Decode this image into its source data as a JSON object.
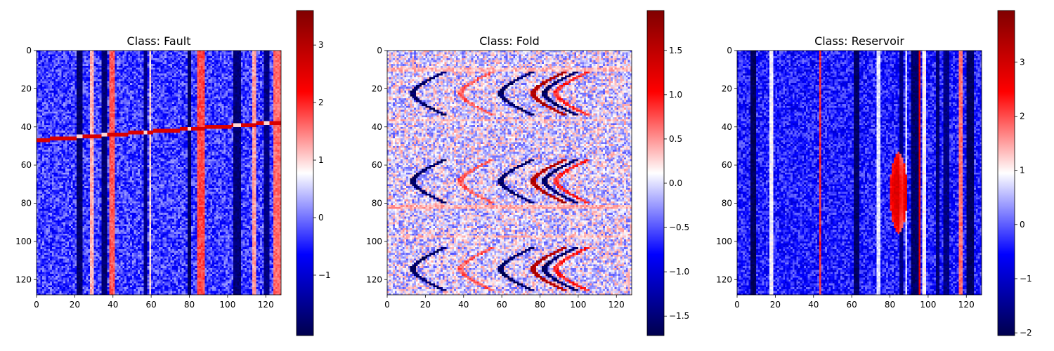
{
  "chart_data": [
    {
      "type": "heatmap",
      "title": "Class: Fault",
      "xlim": [
        0,
        128
      ],
      "ylim": [
        128,
        0
      ],
      "x_ticks": [
        0,
        20,
        40,
        60,
        80,
        100,
        120
      ],
      "y_ticks": [
        0,
        20,
        40,
        60,
        80,
        100,
        120
      ],
      "colormap": "seismic",
      "colorbar_range": [
        -2.05,
        3.6
      ],
      "colorbar_ticks": [
        -1,
        0,
        1,
        2,
        3
      ],
      "background_value": -0.3,
      "noise_amplitude": 0.55,
      "vertical_bands": [
        {
          "x": [
            21,
            24
          ],
          "value": -1.8
        },
        {
          "x": [
            28,
            30
          ],
          "value": 1.2
        },
        {
          "x": [
            34,
            37
          ],
          "value": -1.7
        },
        {
          "x": [
            38,
            41
          ],
          "value": 1.7
        },
        {
          "x": [
            56,
            58
          ],
          "value": -1.6
        },
        {
          "x": [
            59,
            60
          ],
          "value": 1.0
        },
        {
          "x": [
            79,
            81
          ],
          "value": -1.9
        },
        {
          "x": [
            84,
            88
          ],
          "value": 1.8
        },
        {
          "x": [
            103,
            107
          ],
          "value": -1.7
        },
        {
          "x": [
            113,
            115
          ],
          "value": 1.3
        },
        {
          "x": [
            119,
            122
          ],
          "value": -1.6
        },
        {
          "x": [
            124,
            128
          ],
          "value": 1.6
        }
      ],
      "fault_line": {
        "x": [
          0,
          128
        ],
        "y": [
          47,
          37.5
        ],
        "thickness": 2,
        "value": 2.6
      }
    },
    {
      "type": "heatmap",
      "title": "Class: Fold",
      "xlim": [
        0,
        128
      ],
      "ylim": [
        128,
        0
      ],
      "x_ticks": [
        0,
        20,
        40,
        60,
        80,
        100,
        120
      ],
      "y_ticks": [
        0,
        20,
        40,
        60,
        80,
        100,
        120
      ],
      "colormap": "seismic",
      "colorbar_range": [
        -1.72,
        1.95
      ],
      "colorbar_ticks": [
        -1.5,
        -1.0,
        -0.5,
        0.0,
        0.5,
        1.0,
        1.5
      ],
      "background_value": 0.0,
      "noise_amplitude": 0.5,
      "horizontal_bands": [
        {
          "y": [
            9,
            11
          ],
          "value": 0.35
        },
        {
          "y": [
            36,
            37
          ],
          "value": 0.35
        },
        {
          "y": [
            81,
            83
          ],
          "value": 0.4
        },
        {
          "y": [
            97,
            98
          ],
          "value": 0.35
        }
      ],
      "chevron_rows": [
        22,
        68,
        114
      ],
      "chevrons": [
        {
          "x0": 12,
          "value": -1.6
        },
        {
          "x0": 37,
          "value": 0.7
        },
        {
          "x0": 58,
          "value": -1.6
        },
        {
          "x0": 75,
          "value": 1.6
        },
        {
          "x0": 81,
          "value": -1.6
        },
        {
          "x0": 87,
          "value": 0.9
        }
      ],
      "chevron_half_height": 11,
      "chevron_depth": 16
    },
    {
      "type": "heatmap",
      "title": "Class: Reservoir",
      "xlim": [
        0,
        128
      ],
      "ylim": [
        128,
        0
      ],
      "x_ticks": [
        0,
        20,
        40,
        60,
        80,
        100,
        120
      ],
      "y_ticks": [
        0,
        20,
        40,
        60,
        80,
        100,
        120
      ],
      "colormap": "seismic",
      "colorbar_range": [
        -2.05,
        3.95
      ],
      "colorbar_ticks": [
        -2,
        -1,
        0,
        1,
        2,
        3
      ],
      "background_value": -0.4,
      "noise_amplitude": 0.55,
      "vertical_bands": [
        {
          "x": [
            7,
            10
          ],
          "value": -1.9
        },
        {
          "x": [
            17,
            19
          ],
          "value": 0.9
        },
        {
          "x": [
            43,
            44
          ],
          "value": 2.2
        },
        {
          "x": [
            61,
            64
          ],
          "value": -1.8
        },
        {
          "x": [
            73,
            75
          ],
          "value": 0.8
        },
        {
          "x": [
            85,
            87
          ],
          "value": -1.6
        },
        {
          "x": [
            88,
            89
          ],
          "value": 0.7
        },
        {
          "x": [
            91,
            95
          ],
          "value": -1.8
        },
        {
          "x": [
            95,
            96
          ],
          "value": 2.8
        },
        {
          "x": [
            97,
            99
          ],
          "value": 1.0
        },
        {
          "x": [
            104,
            106
          ],
          "value": -1.7
        },
        {
          "x": [
            108,
            111
          ],
          "value": -1.6
        },
        {
          "x": [
            116,
            118
          ],
          "value": 1.8
        },
        {
          "x": [
            120,
            124
          ],
          "value": -1.9
        }
      ],
      "reservoir": {
        "cx": 84,
        "cy": 74,
        "rx": 4.5,
        "ry": 21,
        "value": 2.9
      }
    }
  ]
}
